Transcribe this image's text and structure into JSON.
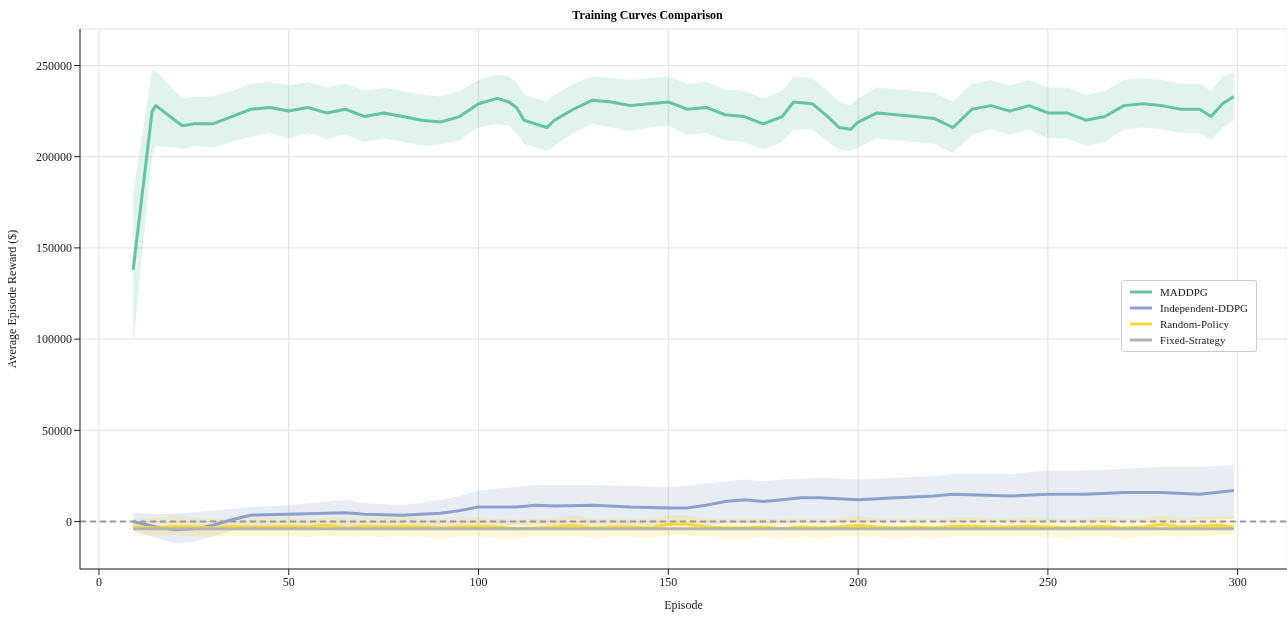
{
  "chart_data": {
    "type": "line",
    "title": "Training Curves Comparison",
    "xlabel": "Episode",
    "ylabel": "Average Episode Reward ($)",
    "xlim": [
      -5,
      313
    ],
    "ylim": [
      -26000,
      270000
    ],
    "xticks": [
      0,
      50,
      100,
      150,
      200,
      250,
      300
    ],
    "yticks": [
      0,
      50000,
      100000,
      150000,
      200000,
      250000
    ],
    "grid": true,
    "legend": "right",
    "marker": "none",
    "line_style": "solid",
    "ref_lines": [
      {
        "axis": "y",
        "value": 0,
        "color": "#999999",
        "line_style": "dashed"
      }
    ],
    "series": [
      {
        "name": "MADDPG",
        "color": "#66c2a5",
        "x": [
          9,
          12,
          14,
          15,
          20,
          22,
          25,
          30,
          35,
          40,
          45,
          50,
          55,
          60,
          65,
          70,
          75,
          80,
          85,
          90,
          95,
          100,
          105,
          108,
          110,
          112,
          115,
          118,
          120,
          125,
          130,
          135,
          140,
          145,
          150,
          155,
          160,
          165,
          170,
          175,
          180,
          183,
          188,
          192,
          195,
          198,
          200,
          205,
          210,
          215,
          220,
          225,
          230,
          235,
          240,
          245,
          250,
          255,
          260,
          265,
          270,
          275,
          280,
          285,
          290,
          293,
          296,
          299
        ],
        "values": [
          138000,
          190000,
          225000,
          228000,
          220000,
          217000,
          218000,
          218000,
          222000,
          226000,
          227000,
          225000,
          227000,
          224000,
          226000,
          222000,
          224000,
          222000,
          220000,
          219000,
          222000,
          229000,
          232000,
          230000,
          227000,
          220000,
          218000,
          216000,
          220000,
          226000,
          231000,
          230000,
          228000,
          229000,
          230000,
          226000,
          227000,
          223000,
          222000,
          218000,
          222000,
          230000,
          229000,
          222000,
          216000,
          215000,
          219000,
          224000,
          223000,
          222000,
          221000,
          216000,
          226000,
          228000,
          225000,
          228000,
          224000,
          224000,
          220000,
          222000,
          228000,
          229000,
          228000,
          226000,
          226000,
          222000,
          229000,
          233000
        ],
        "lower": [
          97000,
          160000,
          200000,
          206000,
          205000,
          204000,
          206000,
          205000,
          208000,
          211000,
          213000,
          210000,
          213000,
          210000,
          212000,
          208000,
          210000,
          208000,
          206000,
          207000,
          209000,
          216000,
          218000,
          217000,
          213000,
          207000,
          205000,
          203000,
          206000,
          213000,
          218000,
          216000,
          214000,
          216000,
          217000,
          212000,
          213000,
          209000,
          208000,
          204000,
          208000,
          215000,
          215000,
          208000,
          204000,
          203000,
          205000,
          210000,
          209000,
          208000,
          207000,
          202000,
          212000,
          215000,
          212000,
          215000,
          210000,
          210000,
          206000,
          208000,
          215000,
          216000,
          215000,
          213000,
          213000,
          209000,
          216000,
          220000
        ],
        "upper": [
          180000,
          220000,
          247000,
          247000,
          236000,
          232000,
          233000,
          233000,
          236000,
          240000,
          241000,
          239000,
          241000,
          238000,
          240000,
          236000,
          238000,
          236000,
          234000,
          233000,
          236000,
          242000,
          245000,
          244000,
          241000,
          234000,
          232000,
          230000,
          234000,
          240000,
          244000,
          243000,
          242000,
          243000,
          244000,
          240000,
          241000,
          237000,
          236000,
          232000,
          236000,
          244000,
          243000,
          236000,
          230000,
          228000,
          232000,
          238000,
          237000,
          236000,
          235000,
          230000,
          240000,
          242000,
          239000,
          242000,
          238000,
          238000,
          234000,
          236000,
          242000,
          243000,
          242000,
          240000,
          240000,
          236000,
          244000,
          246000
        ]
      },
      {
        "name": "Independent-DDPG",
        "color": "#8da0cb",
        "x": [
          9,
          15,
          20,
          25,
          30,
          35,
          40,
          50,
          60,
          65,
          70,
          80,
          90,
          95,
          100,
          110,
          115,
          120,
          130,
          140,
          150,
          155,
          160,
          165,
          170,
          175,
          180,
          185,
          190,
          200,
          210,
          220,
          225,
          240,
          250,
          260,
          270,
          280,
          290,
          299
        ],
        "values": [
          0,
          -3000,
          -4500,
          -4000,
          -2000,
          1000,
          3500,
          4000,
          4500,
          4800,
          4000,
          3500,
          4500,
          6000,
          8000,
          8000,
          9000,
          8500,
          9000,
          8000,
          7500,
          7500,
          9000,
          11000,
          12000,
          11000,
          12000,
          13000,
          13000,
          12000,
          13000,
          14000,
          15000,
          14000,
          15000,
          15000,
          16000,
          16000,
          15000,
          17000
        ],
        "lower": [
          -5000,
          -9000,
          -12000,
          -11000,
          -8000,
          -5000,
          -3000,
          -3000,
          -3000,
          -2500,
          -3000,
          -4000,
          -3000,
          -2500,
          -2000,
          -2000,
          -2000,
          -2000,
          -2000,
          -2000,
          -2000,
          -2000,
          -2000,
          -1000,
          -1000,
          -1000,
          -1000,
          -500,
          -500,
          0,
          0,
          0,
          0,
          0,
          0,
          0,
          500,
          500,
          1000,
          1500
        ],
        "upper": [
          5000,
          4000,
          4500,
          5000,
          6000,
          7000,
          8000,
          9000,
          11000,
          12000,
          10000,
          9000,
          12000,
          14000,
          17000,
          19000,
          20000,
          20000,
          20000,
          19500,
          19000,
          19500,
          21000,
          22000,
          23000,
          22000,
          23000,
          23500,
          24000,
          23000,
          24000,
          25000,
          26000,
          26000,
          28000,
          28000,
          29000,
          30000,
          30000,
          31000
        ]
      },
      {
        "name": "Random-Policy",
        "color": "#ffd92f",
        "x": [
          9,
          15,
          20,
          25,
          30,
          35,
          40,
          45,
          50,
          55,
          60,
          65,
          70,
          75,
          80,
          85,
          90,
          95,
          100,
          105,
          110,
          115,
          120,
          125,
          130,
          135,
          140,
          145,
          150,
          155,
          160,
          165,
          170,
          175,
          180,
          185,
          190,
          195,
          200,
          205,
          210,
          215,
          220,
          225,
          230,
          235,
          240,
          245,
          250,
          255,
          260,
          265,
          270,
          275,
          280,
          285,
          290,
          295,
          299
        ],
        "values": [
          -3000,
          -3500,
          -2500,
          -3000,
          -3500,
          -2500,
          -3000,
          -3000,
          -2500,
          -3000,
          -2000,
          -3500,
          -2500,
          -3000,
          -2500,
          -3000,
          -3500,
          -3000,
          -2500,
          -3000,
          -4000,
          -3500,
          -3000,
          -2000,
          -3500,
          -3000,
          -3000,
          -3500,
          -1500,
          -1500,
          -3000,
          -3500,
          -3500,
          -3000,
          -4000,
          -3000,
          -3500,
          -3000,
          -2000,
          -3000,
          -3500,
          -3000,
          -3500,
          -2500,
          -2500,
          -3000,
          -3000,
          -2500,
          -3000,
          -3500,
          -3000,
          -2500,
          -3500,
          -3000,
          -1500,
          -3000,
          -2500,
          -2000,
          -3000
        ],
        "lower": [
          -7500,
          -8000,
          -7500,
          -8000,
          -8500,
          -8000,
          -8000,
          -8500,
          -8000,
          -8500,
          -7500,
          -8500,
          -8000,
          -8500,
          -8000,
          -8500,
          -9000,
          -8500,
          -8000,
          -9000,
          -9000,
          -8500,
          -8500,
          -8000,
          -9000,
          -8500,
          -8500,
          -9000,
          -7500,
          -7500,
          -8500,
          -9000,
          -9000,
          -8500,
          -9000,
          -8500,
          -9000,
          -8500,
          -8000,
          -8500,
          -9000,
          -8500,
          -9000,
          -8000,
          -8000,
          -8500,
          -8500,
          -8000,
          -8500,
          -9000,
          -8500,
          -8000,
          -9000,
          -8500,
          -7500,
          -8500,
          -8000,
          -7500,
          -7500
        ],
        "upper": [
          1500,
          2000,
          3500,
          2000,
          1500,
          2000,
          2500,
          2000,
          2500,
          1500,
          2500,
          2000,
          2500,
          2000,
          2500,
          2000,
          1500,
          2000,
          2500,
          1500,
          1000,
          1500,
          2000,
          3500,
          1500,
          2000,
          2000,
          1500,
          3500,
          3500,
          2000,
          1500,
          1500,
          2000,
          1000,
          2000,
          1500,
          2000,
          3000,
          2000,
          1500,
          2000,
          1500,
          2500,
          2500,
          2000,
          2000,
          2500,
          2000,
          1500,
          2000,
          2500,
          1500,
          2000,
          3500,
          2000,
          2500,
          3000,
          3000
        ]
      },
      {
        "name": "Fixed-Strategy",
        "color": "#b3b3b3",
        "x": [
          9,
          299
        ],
        "values": [
          -4000,
          -4000
        ]
      }
    ]
  }
}
